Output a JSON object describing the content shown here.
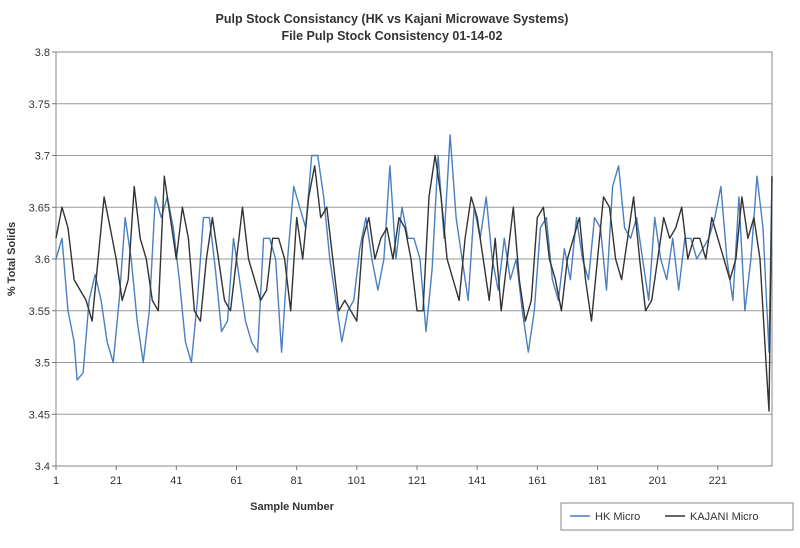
{
  "chart_data": {
    "type": "line",
    "title": "Pulp Stock Consistancy (HK vs Kajani Microwave Systems)",
    "subtitle": "File Pulp Stock Consistency 01-14-02",
    "xlabel": "Sample Number",
    "ylabel": "% Total Solids",
    "xlim": [
      1,
      239
    ],
    "ylim": [
      3.4,
      3.8
    ],
    "yticks": [
      3.4,
      3.45,
      3.5,
      3.55,
      3.6,
      3.65,
      3.7,
      3.75,
      3.8
    ],
    "xtick_labels": [
      "1",
      "21",
      "41",
      "61",
      "81",
      "101",
      "121",
      "141",
      "161",
      "181",
      "201",
      "221"
    ],
    "grid": "horizontal",
    "legend_position": "bottom-right",
    "series": [
      {
        "name": "HK Micro",
        "color": "#4a7fc0",
        "x": [
          1,
          3,
          5,
          7,
          8,
          10,
          12,
          14,
          16,
          18,
          20,
          22,
          24,
          26,
          28,
          30,
          32,
          34,
          36,
          38,
          40,
          42,
          44,
          46,
          48,
          50,
          52,
          54,
          56,
          58,
          60,
          62,
          64,
          66,
          68,
          70,
          72,
          74,
          76,
          78,
          80,
          82,
          84,
          86,
          88,
          90,
          92,
          94,
          96,
          98,
          100,
          102,
          104,
          106,
          108,
          110,
          112,
          114,
          116,
          118,
          120,
          122,
          124,
          126,
          128,
          130,
          132,
          134,
          136,
          138,
          140,
          142,
          144,
          146,
          148,
          150,
          152,
          154,
          156,
          158,
          160,
          162,
          164,
          166,
          168,
          170,
          172,
          174,
          176,
          178,
          180,
          182,
          184,
          186,
          188,
          190,
          192,
          194,
          196,
          198,
          200,
          202,
          204,
          206,
          208,
          210,
          212,
          214,
          216,
          218,
          220,
          222,
          224,
          226,
          228,
          230,
          232,
          234,
          236,
          238,
          239
        ],
        "y": [
          3.6,
          3.62,
          3.55,
          3.52,
          3.483,
          3.49,
          3.56,
          3.585,
          3.56,
          3.52,
          3.5,
          3.56,
          3.64,
          3.6,
          3.54,
          3.5,
          3.55,
          3.66,
          3.64,
          3.66,
          3.63,
          3.58,
          3.52,
          3.5,
          3.56,
          3.64,
          3.64,
          3.59,
          3.53,
          3.54,
          3.62,
          3.58,
          3.54,
          3.52,
          3.51,
          3.62,
          3.62,
          3.6,
          3.51,
          3.6,
          3.67,
          3.65,
          3.63,
          3.7,
          3.7,
          3.66,
          3.6,
          3.56,
          3.52,
          3.55,
          3.56,
          3.61,
          3.64,
          3.6,
          3.57,
          3.6,
          3.69,
          3.6,
          3.65,
          3.62,
          3.62,
          3.6,
          3.53,
          3.59,
          3.7,
          3.62,
          3.72,
          3.64,
          3.6,
          3.56,
          3.65,
          3.62,
          3.66,
          3.6,
          3.57,
          3.62,
          3.58,
          3.6,
          3.55,
          3.51,
          3.55,
          3.63,
          3.64,
          3.58,
          3.56,
          3.61,
          3.58,
          3.64,
          3.6,
          3.58,
          3.64,
          3.63,
          3.57,
          3.67,
          3.69,
          3.63,
          3.62,
          3.64,
          3.6,
          3.56,
          3.64,
          3.6,
          3.58,
          3.62,
          3.57,
          3.62,
          3.62,
          3.6,
          3.61,
          3.62,
          3.64,
          3.67,
          3.6,
          3.56,
          3.66,
          3.55,
          3.6,
          3.68,
          3.63,
          3.51,
          3.68
        ]
      },
      {
        "name": "KAJANI Micro",
        "color": "#333333",
        "x": [
          1,
          3,
          5,
          7,
          9,
          11,
          13,
          15,
          17,
          19,
          21,
          23,
          25,
          27,
          29,
          31,
          33,
          35,
          37,
          39,
          41,
          43,
          45,
          47,
          49,
          51,
          53,
          55,
          57,
          59,
          61,
          63,
          65,
          67,
          69,
          71,
          73,
          75,
          77,
          79,
          81,
          83,
          85,
          87,
          89,
          91,
          93,
          95,
          97,
          99,
          101,
          103,
          105,
          107,
          109,
          111,
          113,
          115,
          117,
          119,
          121,
          123,
          125,
          127,
          129,
          131,
          133,
          135,
          137,
          139,
          141,
          143,
          145,
          147,
          149,
          151,
          153,
          155,
          157,
          159,
          161,
          163,
          165,
          167,
          169,
          171,
          173,
          175,
          177,
          179,
          181,
          183,
          185,
          187,
          189,
          191,
          193,
          195,
          197,
          199,
          201,
          203,
          205,
          207,
          209,
          211,
          213,
          215,
          217,
          219,
          221,
          223,
          225,
          227,
          229,
          231,
          233,
          235,
          237,
          238,
          239
        ],
        "y": [
          3.62,
          3.65,
          3.63,
          3.58,
          3.57,
          3.56,
          3.54,
          3.6,
          3.66,
          3.63,
          3.6,
          3.56,
          3.58,
          3.67,
          3.62,
          3.6,
          3.56,
          3.55,
          3.68,
          3.64,
          3.6,
          3.65,
          3.62,
          3.55,
          3.54,
          3.6,
          3.64,
          3.6,
          3.56,
          3.55,
          3.6,
          3.65,
          3.6,
          3.58,
          3.56,
          3.57,
          3.62,
          3.62,
          3.6,
          3.55,
          3.64,
          3.6,
          3.66,
          3.69,
          3.64,
          3.65,
          3.6,
          3.55,
          3.56,
          3.55,
          3.54,
          3.62,
          3.64,
          3.6,
          3.62,
          3.63,
          3.6,
          3.64,
          3.63,
          3.6,
          3.55,
          3.55,
          3.66,
          3.7,
          3.66,
          3.6,
          3.58,
          3.56,
          3.62,
          3.66,
          3.64,
          3.6,
          3.56,
          3.62,
          3.55,
          3.6,
          3.65,
          3.58,
          3.54,
          3.56,
          3.64,
          3.65,
          3.6,
          3.58,
          3.55,
          3.6,
          3.62,
          3.64,
          3.58,
          3.54,
          3.6,
          3.66,
          3.65,
          3.6,
          3.58,
          3.62,
          3.66,
          3.6,
          3.55,
          3.56,
          3.6,
          3.64,
          3.62,
          3.63,
          3.65,
          3.6,
          3.62,
          3.62,
          3.6,
          3.64,
          3.62,
          3.6,
          3.58,
          3.6,
          3.66,
          3.62,
          3.64,
          3.6,
          3.5,
          3.453,
          3.68
        ]
      }
    ]
  }
}
